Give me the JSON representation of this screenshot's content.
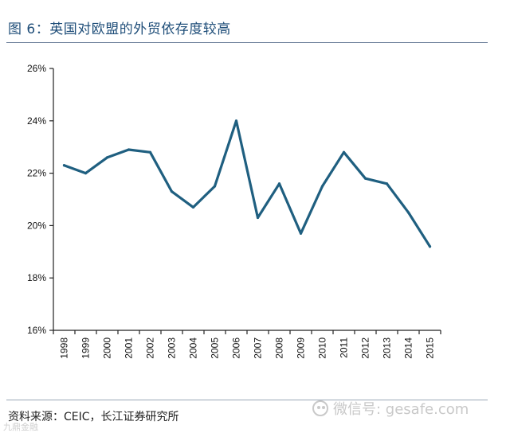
{
  "figure": {
    "title": "图 6：英国对欧盟的外贸依存度较高",
    "source": "资料来源：CEIC，长江证券研究所",
    "watermark": "微信号: gesafe.com",
    "corner_mark": "九鼎金融"
  },
  "colors": {
    "line": "#1f5f80",
    "axis": "#222222",
    "title": "#1f4e79"
  },
  "chart_data": {
    "type": "line",
    "title": "",
    "xlabel": "",
    "ylabel": "",
    "categories": [
      "1998",
      "1999",
      "2000",
      "2001",
      "2002",
      "2003",
      "2004",
      "2005",
      "2006",
      "2007",
      "2008",
      "2009",
      "2010",
      "2011",
      "2012",
      "2013",
      "2014",
      "2015"
    ],
    "series": [
      {
        "name": "英国对欧盟的外贸依存度",
        "values": [
          22.3,
          22.0,
          22.6,
          22.9,
          22.8,
          21.3,
          20.7,
          21.5,
          24.0,
          20.3,
          21.6,
          19.7,
          21.5,
          22.8,
          21.8,
          21.6,
          20.5,
          19.2
        ]
      }
    ],
    "ylim": [
      16,
      26
    ],
    "yticks": [
      16,
      18,
      20,
      22,
      24,
      26
    ],
    "ytick_labels": [
      "16%",
      "18%",
      "20%",
      "22%",
      "24%",
      "26%"
    ],
    "grid": false,
    "legend": "none"
  }
}
